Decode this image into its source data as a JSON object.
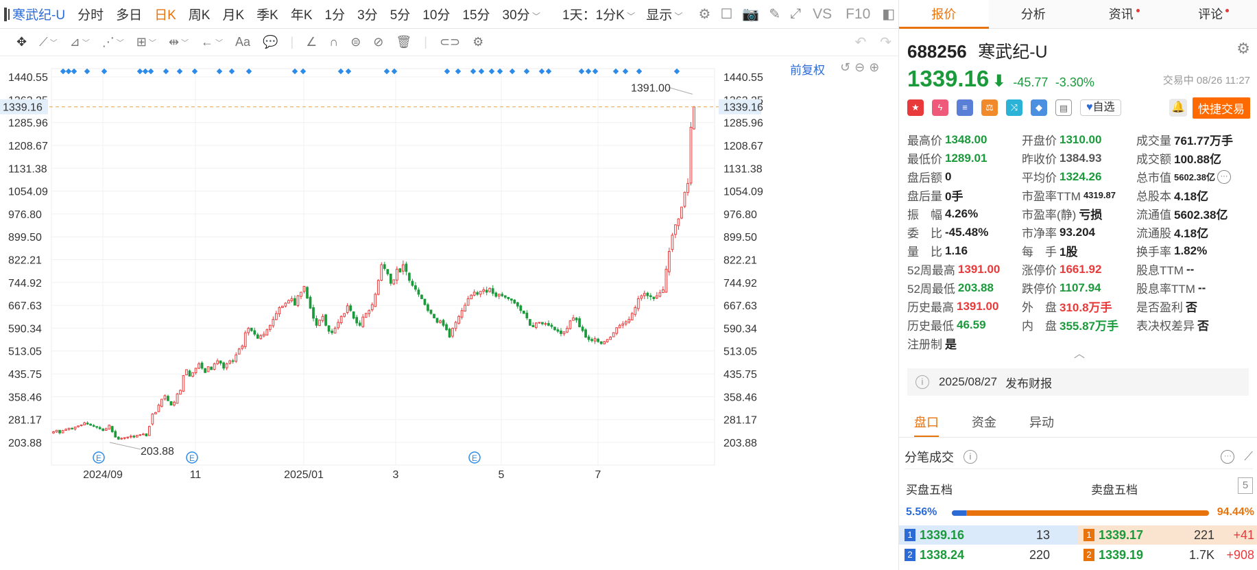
{
  "toolbar": {
    "stock_title": "寒武纪-U",
    "periods": [
      "分时",
      "多日",
      "日K",
      "周K",
      "月K",
      "季K",
      "年K",
      "1分",
      "3分",
      "5分",
      "10分",
      "15分"
    ],
    "active_period": "日K",
    "dd_period": "30分",
    "dd_combo": "1天：1分K",
    "dd_display": "显示",
    "vs_label": "VS",
    "f10_label": "F10"
  },
  "drawing_tools": {
    "text_tool": "Aa"
  },
  "chart_labels": {
    "adjust": "前复权",
    "current_price_tag": "1339.16",
    "high_annotation": "1391.00",
    "low_annotation": "203.88",
    "earnings_marker": "E"
  },
  "chart_data": {
    "type": "candlestick",
    "x_tick_labels": [
      "2024/09",
      "11",
      "2025/01",
      "3",
      "5",
      "7"
    ],
    "y_tick_labels": [
      "1440.55",
      "1363.25",
      "1285.96",
      "1208.67",
      "1131.38",
      "1054.09",
      "976.80",
      "899.50",
      "822.21",
      "744.92",
      "667.63",
      "590.34",
      "513.05",
      "435.75",
      "358.46",
      "281.17",
      "203.88"
    ],
    "ylim": [
      165.24,
      1479.2
    ],
    "current_price": 1339.16,
    "period_high": 1391.0,
    "period_low": 203.88,
    "closes": [
      240,
      245,
      236,
      244,
      248,
      252,
      250,
      256,
      260,
      263,
      270,
      266,
      262,
      258,
      255,
      250,
      244,
      250,
      262,
      240,
      222,
      215,
      218,
      220,
      222,
      225,
      222,
      228,
      230,
      232,
      226,
      258,
      300,
      305,
      330,
      350,
      362,
      345,
      330,
      340,
      368,
      380,
      430,
      450,
      428,
      440,
      455,
      470,
      455,
      440,
      460,
      450,
      470,
      480,
      472,
      455,
      470,
      480,
      478,
      500,
      520,
      530,
      575,
      590,
      582,
      570,
      556,
      565,
      570,
      585,
      600,
      620,
      640,
      660,
      665,
      675,
      684,
      690,
      668,
      700,
      712,
      732,
      692,
      658,
      624,
      600,
      618,
      630,
      600,
      580,
      575,
      590,
      610,
      630,
      640,
      666,
      650,
      624,
      608,
      600,
      628,
      640,
      650,
      670,
      705,
      752,
      805,
      792,
      774,
      742,
      754,
      790,
      780,
      805,
      782,
      752,
      735,
      722,
      705,
      690,
      670,
      650,
      640,
      625,
      610,
      615,
      600,
      585,
      560,
      590,
      610,
      630,
      650,
      668,
      690,
      702,
      712,
      705,
      715,
      720,
      712,
      725,
      708,
      698,
      705,
      700,
      695,
      690,
      685,
      675,
      665,
      650,
      640,
      625,
      600,
      595,
      608,
      610,
      605,
      606,
      600,
      596,
      585,
      580,
      572,
      578,
      590,
      615,
      625,
      618,
      595,
      582,
      560,
      552,
      548,
      555,
      545,
      538,
      545,
      552,
      560,
      575,
      592,
      600,
      605,
      612,
      620,
      640,
      660,
      690,
      700,
      708,
      700,
      697,
      690,
      700,
      710,
      720,
      790,
      850,
      905,
      940,
      960,
      1000,
      1050,
      1080,
      1270,
      1339
    ]
  },
  "right_tabs": [
    {
      "label": "报价",
      "dot": false
    },
    {
      "label": "分析",
      "dot": false
    },
    {
      "label": "资讯",
      "dot": true
    },
    {
      "label": "评论",
      "dot": true
    }
  ],
  "stock": {
    "code": "688256",
    "name": "寒武纪-U",
    "price": "1339.16",
    "change": "-45.77",
    "change_pct": "-3.30%",
    "status": "交易中 08/26 11:27",
    "watch_label": "自选",
    "quick_trade": "快捷交易"
  },
  "quote_rows": [
    [
      {
        "label": "最高价",
        "value": "1348.00",
        "c": "g"
      },
      {
        "label": "开盘价",
        "value": "1310.00",
        "c": "g"
      },
      {
        "label": "成交量",
        "value": "761.77万手",
        "c": "k"
      }
    ],
    [
      {
        "label": "最低价",
        "value": "1289.01",
        "c": "g"
      },
      {
        "label": "昨收价",
        "value": "1384.93",
        "c": "gy"
      },
      {
        "label": "成交额",
        "value": "100.88亿",
        "c": "k"
      }
    ],
    [
      {
        "label": "盘后额",
        "value": "0",
        "c": "k"
      },
      {
        "label": "平均价",
        "value": "1324.26",
        "c": "g"
      },
      {
        "label": "总市值",
        "value": "5602.38亿",
        "c": "k"
      }
    ],
    [
      {
        "label": "盘后量",
        "value": "0手",
        "c": "k"
      },
      {
        "label": "市盈率TTM",
        "value": "4319.87",
        "c": "k"
      },
      {
        "label": "总股本",
        "value": "4.18亿",
        "c": "k"
      }
    ],
    [
      {
        "label": "振　幅",
        "value": "4.26%",
        "c": "k"
      },
      {
        "label": "市盈率(静)",
        "value": "亏损",
        "c": "k"
      },
      {
        "label": "流通值",
        "value": "5602.38亿",
        "c": "k"
      }
    ],
    [
      {
        "label": "委　比",
        "value": "-45.48%",
        "c": "k"
      },
      {
        "label": "市净率",
        "value": "93.204",
        "c": "k"
      },
      {
        "label": "流通股",
        "value": "4.18亿",
        "c": "k"
      }
    ],
    [
      {
        "label": "量　比",
        "value": "1.16",
        "c": "k"
      },
      {
        "label": "每　手",
        "value": "1股",
        "c": "k"
      },
      {
        "label": "换手率",
        "value": "1.82%",
        "c": "k"
      }
    ],
    [
      {
        "label": "52周最高",
        "value": "1391.00",
        "c": "r"
      },
      {
        "label": "涨停价",
        "value": "1661.92",
        "c": "r"
      },
      {
        "label": "股息TTM",
        "value": "--",
        "c": "k"
      }
    ],
    [
      {
        "label": "52周最低",
        "value": "203.88",
        "c": "g"
      },
      {
        "label": "跌停价",
        "value": "1107.94",
        "c": "g"
      },
      {
        "label": "股息率TTM",
        "value": "--",
        "c": "k"
      }
    ],
    [
      {
        "label": "历史最高",
        "value": "1391.00",
        "c": "r"
      },
      {
        "label": "外　盘",
        "value": "310.8万手",
        "c": "r"
      },
      {
        "label": "是否盈利",
        "value": "否",
        "c": "k"
      }
    ],
    [
      {
        "label": "历史最低",
        "value": "46.59",
        "c": "g"
      },
      {
        "label": "内　盘",
        "value": "355.87万手",
        "c": "g"
      },
      {
        "label": "表决权差异",
        "value": "否",
        "c": "k"
      }
    ],
    [
      {
        "label": "注册制",
        "value": "是",
        "c": "k"
      }
    ]
  ],
  "notice": {
    "date": "2025/08/27",
    "text": "发布财报"
  },
  "sub_tabs": [
    "盘口",
    "资金",
    "异动"
  ],
  "ticks_title": "分笔成交",
  "orderbook": {
    "buy_title": "买盘五档",
    "sell_title": "卖盘五档",
    "levels_label": "5",
    "buy_pct": "5.56%",
    "sell_pct": "94.44%",
    "buy_ratio": 0.0556,
    "rows": [
      {
        "n": "1",
        "bid": "1339.16",
        "bid_vol": "13",
        "ask": "1339.17",
        "ask_vol": "221",
        "ask_delta": "+41"
      },
      {
        "n": "2",
        "bid": "1338.24",
        "bid_vol": "220",
        "ask": "1339.19",
        "ask_vol": "1.7K",
        "ask_delta": "+908"
      }
    ]
  },
  "colors": {
    "accent": "#e8730c",
    "up": "#e83a3a",
    "down": "#1a9a3a",
    "link": "#2c6bd6"
  }
}
